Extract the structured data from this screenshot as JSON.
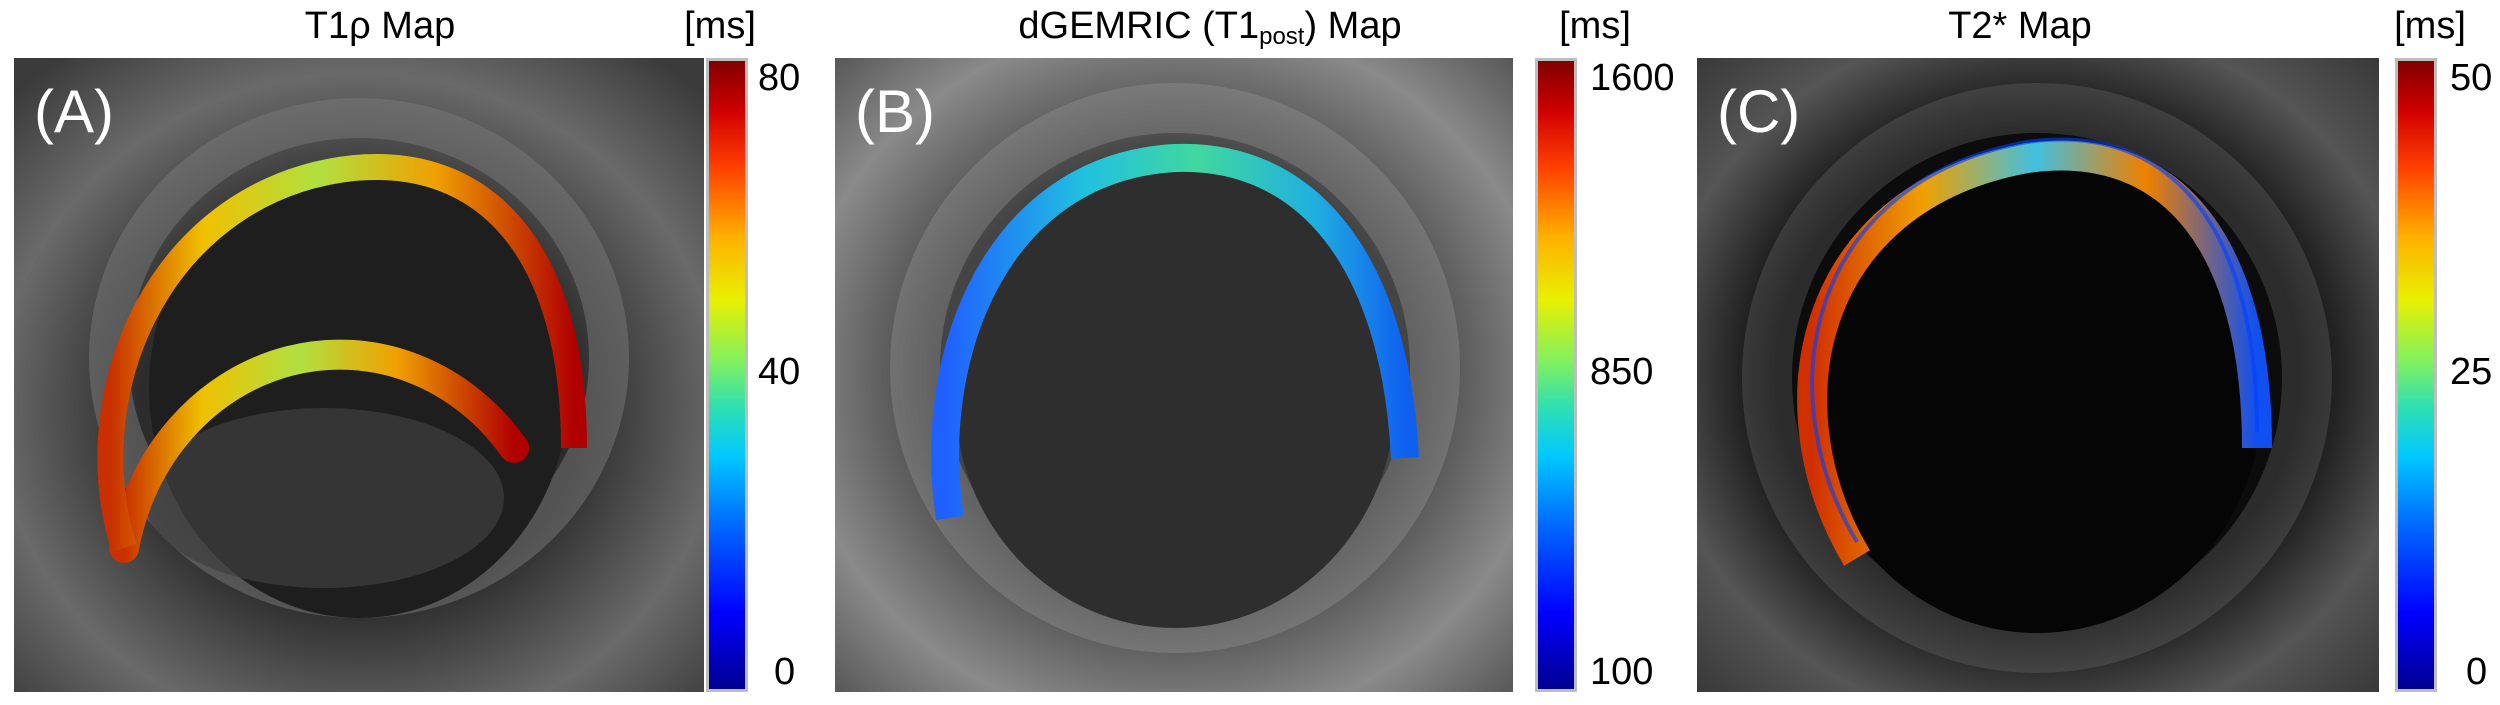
{
  "panels": [
    {
      "title": "T1ρ Map",
      "unit": "[ms]",
      "letter": "(A)",
      "colorbar": {
        "min": "0",
        "mid": "40",
        "max": "80"
      }
    },
    {
      "title_main": "dGEMRIC (T1",
      "title_sub": "post",
      "title_end": ") Map",
      "unit": "[ms]",
      "letter": "(B)",
      "colorbar": {
        "min": "100",
        "mid": "850",
        "max": "1600"
      }
    },
    {
      "title": "T2* Map",
      "unit": "[ms]",
      "letter": "(C)",
      "colorbar": {
        "min": "0",
        "mid": "25",
        "max": "50"
      }
    }
  ],
  "colors": {
    "colormap": [
      "#00008f",
      "#0000ff",
      "#00c8ff",
      "#80f060",
      "#e8f000",
      "#ff4000",
      "#800000"
    ],
    "background": "#ffffff"
  }
}
